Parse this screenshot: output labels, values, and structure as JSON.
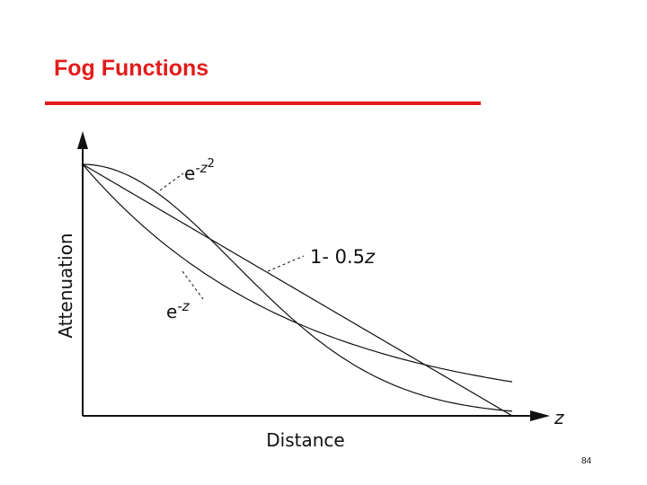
{
  "title": "Fog Functions",
  "figure": {
    "y_axis_label": "Attenuation",
    "x_axis_label": "Distance",
    "x_axis_symbol": "z",
    "curve_labels": {
      "gaussian": {
        "base": "e",
        "exponent": "-z",
        "exponent_power": "2"
      },
      "linear": {
        "text": "1- 0.5",
        "variable": "z"
      },
      "exponential": {
        "base": "e",
        "exponent": "-z"
      }
    }
  },
  "page_number": "84"
}
